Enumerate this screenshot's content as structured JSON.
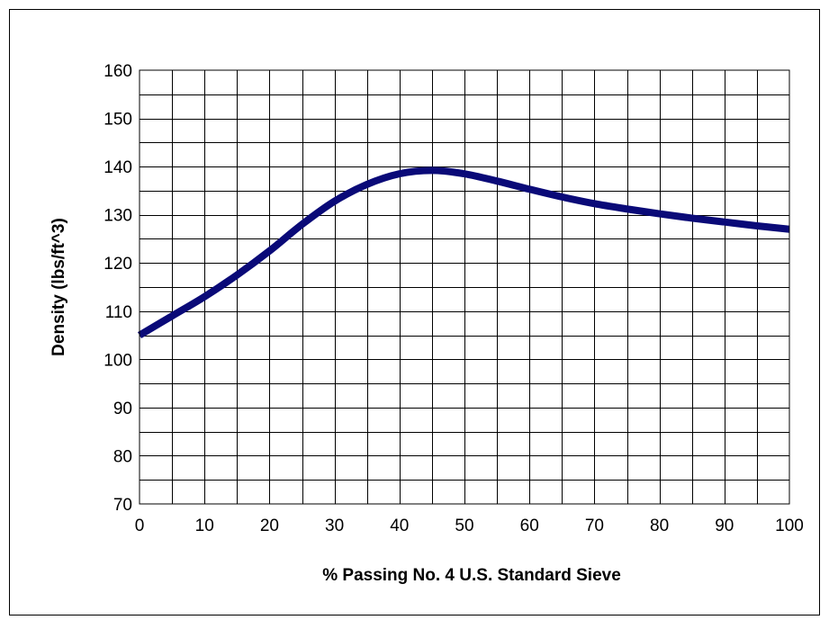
{
  "chart_data": {
    "type": "line",
    "title": "",
    "xlabel": "% Passing No. 4 U.S. Standard Sieve",
    "ylabel": "Density (lbs/ft^3)",
    "xlim": [
      0,
      100
    ],
    "ylim": [
      70,
      160
    ],
    "grid": true,
    "x_ticks": [
      "0",
      "10",
      "20",
      "30",
      "40",
      "50",
      "60",
      "70",
      "80",
      "90",
      "100"
    ],
    "y_ticks": [
      "70",
      "80",
      "90",
      "100",
      "110",
      "120",
      "130",
      "140",
      "150",
      "160"
    ],
    "series": [
      {
        "color": "#0a0a78",
        "x": [
          0,
          5,
          10,
          15,
          20,
          25,
          30,
          35,
          40,
          45,
          50,
          55,
          60,
          65,
          70,
          75,
          80,
          85,
          90,
          95,
          100
        ],
        "values": [
          105,
          109,
          113,
          117.5,
          122.5,
          128,
          132.8,
          136.3,
          138.5,
          139.2,
          138.5,
          137,
          135.3,
          133.7,
          132.3,
          131.2,
          130.2,
          129.3,
          128.5,
          127.7,
          127
        ]
      }
    ]
  }
}
